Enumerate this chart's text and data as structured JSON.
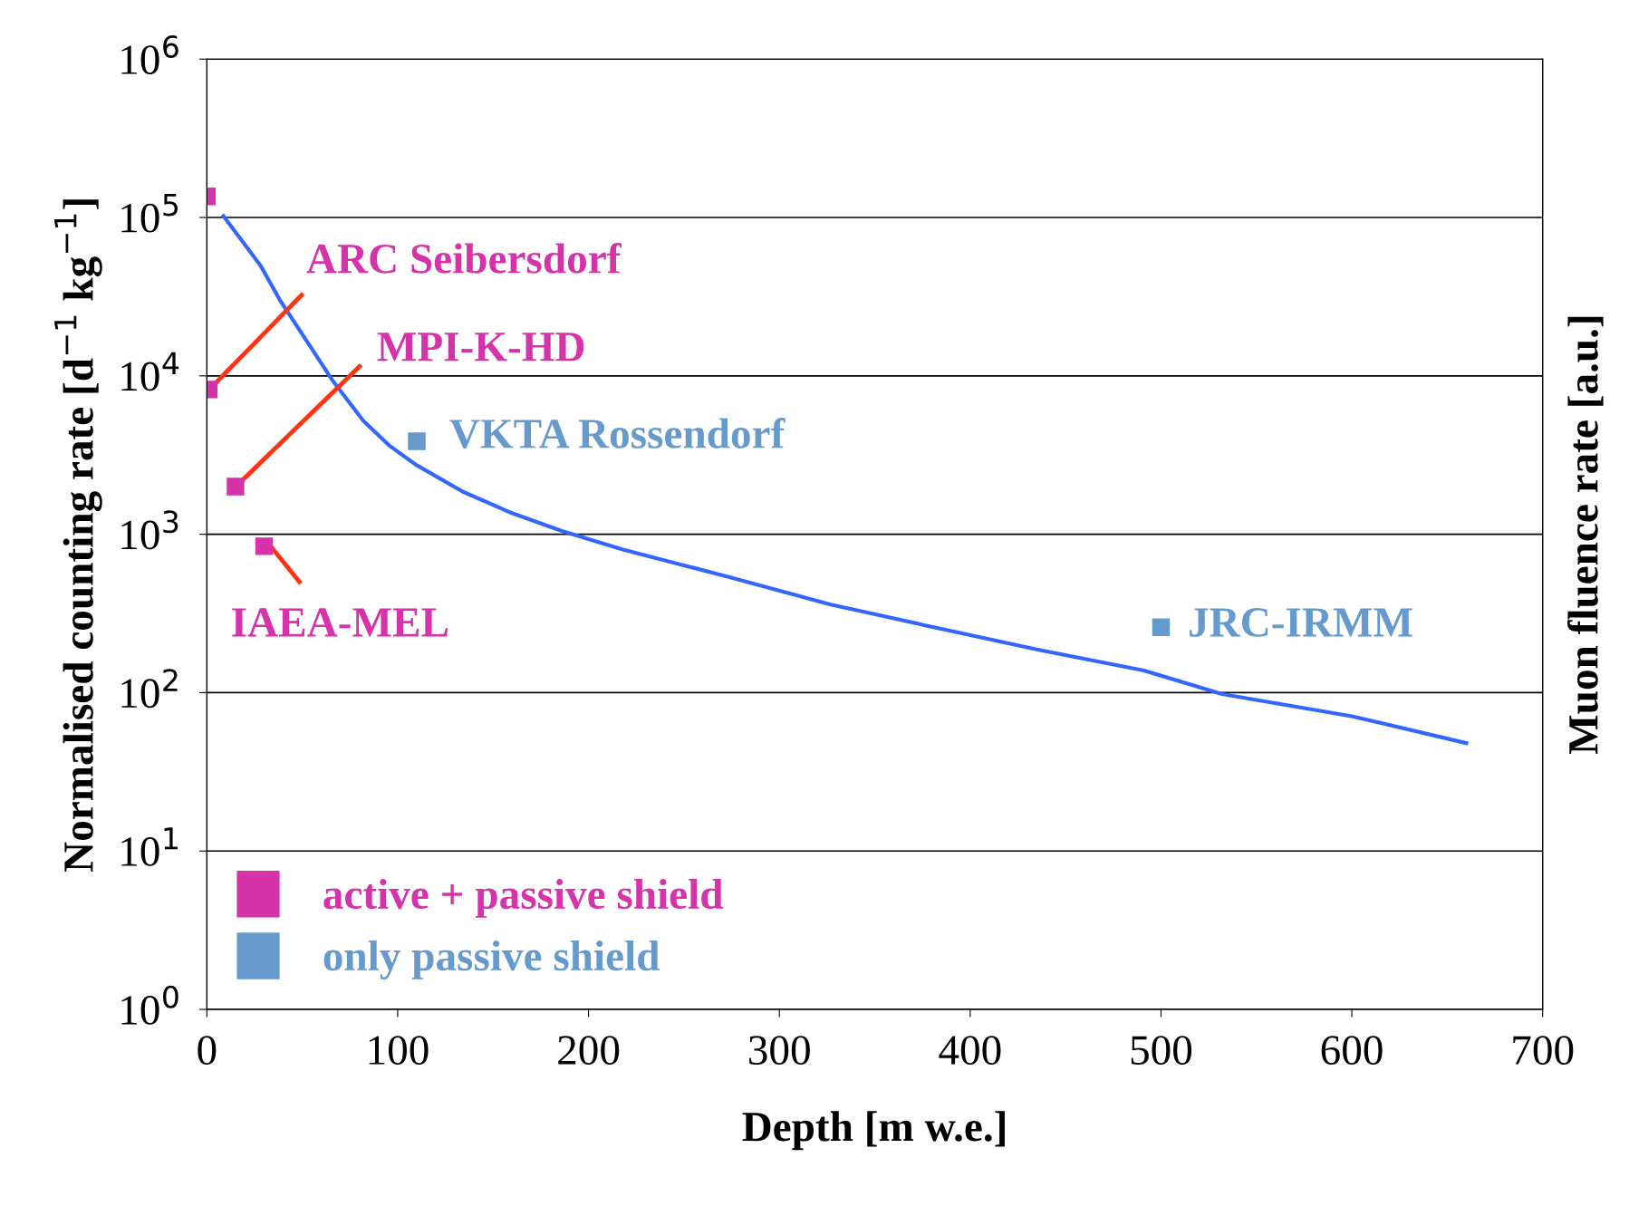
{
  "chart_data": {
    "type": "scatter",
    "xlabel": "Depth [m w.e.]",
    "ylabel": "Normalised counting rate [d$^{−1}$ kg$^{−1}$]",
    "y2label": "Muon fluence rate [a.u.]",
    "log": "y",
    "grid": "y",
    "legend": "bottom left",
    "marker": "square",
    "tick_labels": "xy",
    "xlim": [
      0,
      700
    ],
    "xticks": [
      0,
      100,
      200,
      300,
      400,
      500,
      600,
      700
    ],
    "ylim": [
      1,
      1000000
    ],
    "yticks": [
      {
        "value": 1,
        "label": "10$^{0}$"
      },
      {
        "value": 10,
        "label": "10$^{1}$"
      },
      {
        "value": 100,
        "label": "10$^{2}$"
      },
      {
        "value": 1000,
        "label": "10$^{3}$"
      },
      {
        "value": 10000,
        "label": "10$^{4}$"
      },
      {
        "value": 100000,
        "label": "10$^{5}$"
      },
      {
        "value": 1000000,
        "label": "10$^{6}$"
      }
    ],
    "series": [
      {
        "type": "line",
        "marker": "none",
        "line_style": "solid",
        "color": "#3366ff",
        "x": [
          8.7,
          28,
          38.7,
          49.6,
          66,
          82,
          96,
          109.5,
          134,
          158.5,
          186,
          218,
          273,
          327,
          382,
          436,
          491,
          532,
          600,
          660
        ],
        "values": [
          102000,
          50000,
          29500,
          18600,
          9300,
          5200,
          3600,
          2750,
          1860,
          1380,
          1050,
          800,
          540,
          360,
          257,
          186,
          138,
          98,
          71,
          48
        ]
      },
      {
        "name": "active + passive shield",
        "color": "#d633aa",
        "x": [
          0,
          1,
          15,
          30
        ],
        "values": [
          136000,
          8200,
          2000,
          840
        ]
      },
      {
        "name": "only passive shield",
        "color": "#6699cc",
        "x": [
          110,
          500
        ],
        "values": [
          3860,
          259
        ]
      }
    ],
    "annotations": [
      {
        "text": "ARC Seibersdorf",
        "x": 1,
        "y": 8200
      },
      {
        "text": "MPI-K-HD",
        "x": 15,
        "y": 2000
      },
      {
        "text": "IAEA-MEL",
        "x": 30,
        "y": 840
      },
      {
        "text": "VKTA Rossendorf",
        "x": 110,
        "y": 3860
      },
      {
        "text": "JRC-IRMM",
        "x": 500,
        "y": 259
      }
    ]
  }
}
